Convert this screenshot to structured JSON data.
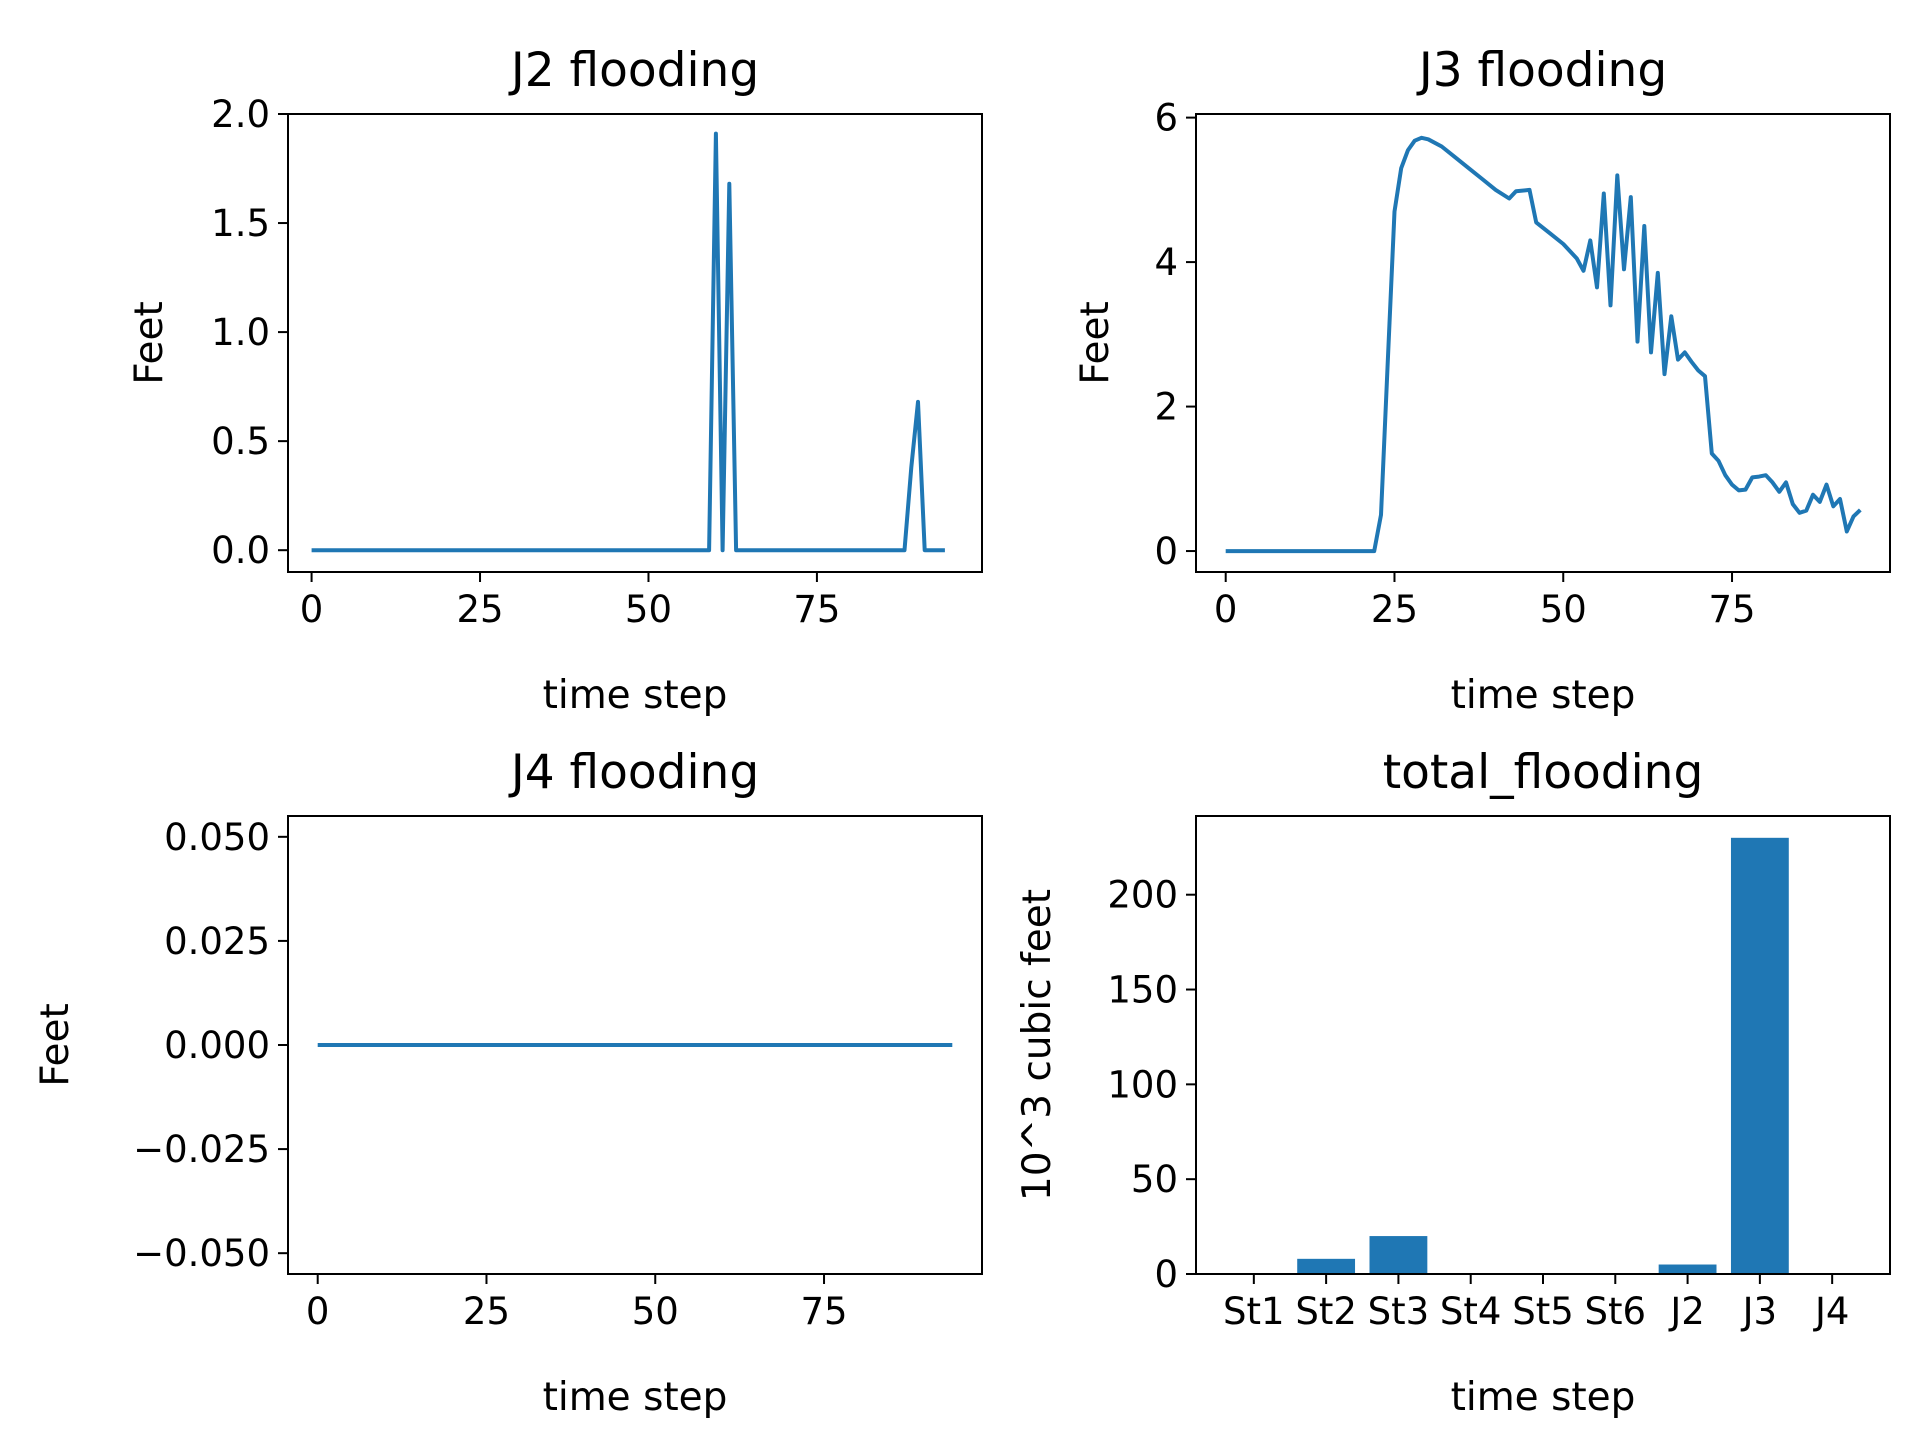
{
  "colors": {
    "series": "#1f77b4",
    "axes": "#000000",
    "background": "#ffffff"
  },
  "chart_data": [
    {
      "type": "line",
      "title": "J2 flooding",
      "xlabel": "time step",
      "ylabel": "Feet",
      "xlim": [
        -3.5,
        99.5
      ],
      "ylim": [
        -0.1,
        2.0
      ],
      "xticks": [
        0,
        25,
        50,
        75
      ],
      "xtick_labels": [
        "0",
        "25",
        "50",
        "75"
      ],
      "yticks": [
        0,
        0.5,
        1.0,
        1.5,
        2.0
      ],
      "ytick_labels": [
        "0.0",
        "0.5",
        "1.0",
        "1.5",
        "2.0"
      ],
      "grid": false,
      "series": [
        {
          "x": [
            0,
            59,
            60,
            61,
            62,
            63,
            88,
            89,
            90,
            91,
            94
          ],
          "y": [
            0,
            0,
            1.91,
            0,
            1.68,
            0,
            0,
            0.38,
            0.68,
            0,
            0
          ]
        }
      ]
    },
    {
      "type": "line",
      "title": "J3 flooding",
      "xlabel": "time step",
      "ylabel": "Feet",
      "xlim": [
        -4.4,
        98.4
      ],
      "ylim": [
        -0.29,
        6.05
      ],
      "xticks": [
        0,
        25,
        50,
        75
      ],
      "xtick_labels": [
        "0",
        "25",
        "50",
        "75"
      ],
      "yticks": [
        0,
        2,
        4,
        6
      ],
      "ytick_labels": [
        "0",
        "2",
        "4",
        "6"
      ],
      "grid": false,
      "series": [
        {
          "x": [
            0,
            22,
            23,
            24,
            25,
            26,
            27,
            28,
            29,
            30,
            32,
            34,
            36,
            38,
            40,
            42,
            43,
            45,
            46,
            48,
            50,
            52,
            53,
            54,
            55,
            56,
            57,
            58,
            59,
            60,
            61,
            62,
            63,
            64,
            65,
            66,
            67,
            68,
            69,
            70,
            71,
            72,
            73,
            74,
            75,
            76,
            77,
            78,
            79,
            80,
            81,
            82,
            83,
            84,
            85,
            86,
            87,
            88,
            89,
            90,
            91,
            92,
            93,
            94
          ],
          "y": [
            0,
            0,
            0.5,
            2.6,
            4.7,
            5.3,
            5.55,
            5.68,
            5.72,
            5.7,
            5.6,
            5.45,
            5.3,
            5.15,
            5.0,
            4.88,
            4.98,
            5.0,
            4.55,
            4.4,
            4.25,
            4.05,
            3.88,
            4.3,
            3.65,
            4.95,
            3.4,
            5.2,
            3.9,
            4.9,
            2.9,
            4.5,
            2.75,
            3.85,
            2.45,
            3.25,
            2.65,
            2.75,
            2.62,
            2.5,
            2.42,
            1.35,
            1.25,
            1.05,
            0.92,
            0.84,
            0.85,
            1.02,
            1.03,
            1.05,
            0.95,
            0.82,
            0.95,
            0.65,
            0.53,
            0.56,
            0.78,
            0.68,
            0.92,
            0.62,
            0.72,
            0.27,
            0.48,
            0.57
          ]
        }
      ]
    },
    {
      "type": "line",
      "title": "J4 flooding",
      "xlabel": "time step",
      "ylabel": "Feet",
      "xlim": [
        -4.4,
        98.4
      ],
      "ylim": [
        -0.055,
        0.055
      ],
      "xticks": [
        0,
        25,
        50,
        75
      ],
      "xtick_labels": [
        "0",
        "25",
        "50",
        "75"
      ],
      "yticks": [
        -0.05,
        -0.025,
        0,
        0.025,
        0.05
      ],
      "ytick_labels": [
        "−0.050",
        "−0.025",
        "0.000",
        "0.025",
        "0.050"
      ],
      "grid": false,
      "series": [
        {
          "x": [
            0,
            94
          ],
          "y": [
            0,
            0
          ]
        }
      ]
    },
    {
      "type": "bar",
      "title": "total_flooding",
      "xlabel": "time step",
      "ylabel": "10^3 cubic feet",
      "categories": [
        "St1",
        "St2",
        "St3",
        "St4",
        "St5",
        "St6",
        "J2",
        "J3",
        "J4"
      ],
      "values": [
        0,
        8,
        20,
        0,
        0,
        0,
        5,
        230,
        0
      ],
      "xlim": [
        -0.8,
        8.8
      ],
      "ylim": [
        0,
        241.5
      ],
      "yticks": [
        0,
        50,
        100,
        150,
        200
      ],
      "ytick_labels": [
        "0",
        "50",
        "100",
        "150",
        "200"
      ],
      "grid": false
    }
  ]
}
